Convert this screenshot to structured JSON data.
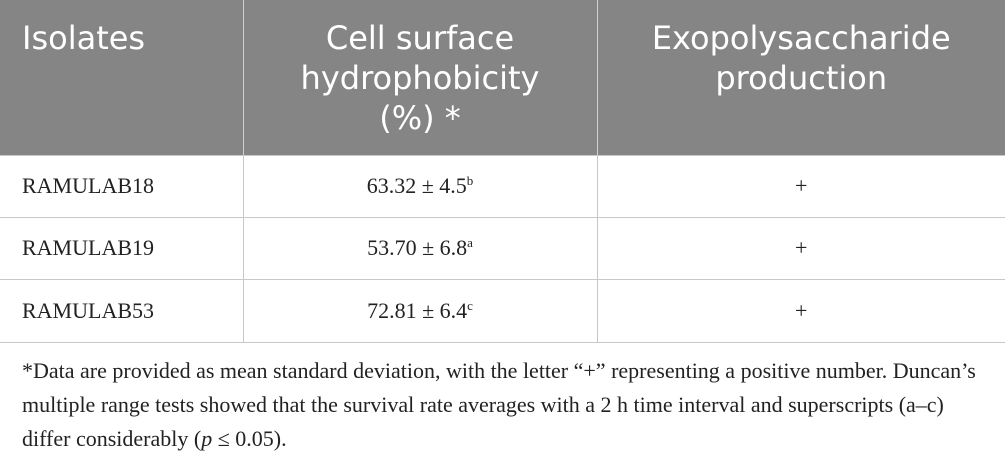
{
  "table": {
    "header": [
      {
        "lines": [
          "Isolates"
        ]
      },
      {
        "lines": [
          "Cell surface",
          "hydrophobicity",
          "(%) *"
        ]
      },
      {
        "lines": [
          "Exopolysaccharide",
          "production"
        ]
      }
    ],
    "rows": [
      [
        {
          "text": "RAMULAB18"
        },
        {
          "text": "63.32 ± 4.5",
          "sup": "b"
        },
        {
          "text": "+"
        }
      ],
      [
        {
          "text": "RAMULAB19"
        },
        {
          "text": "53.70 ± 6.8",
          "sup": "a"
        },
        {
          "text": "+"
        }
      ],
      [
        {
          "text": "RAMULAB53"
        },
        {
          "text": "72.81 ± 6.4",
          "sup": "c"
        },
        {
          "text": "+"
        }
      ]
    ]
  },
  "footnote": {
    "parts": [
      {
        "text": "*Data are provided as mean standard deviation, with the letter “+” representing a positive number. Duncan’s multiple range tests showed that the survival rate averages with a 2 h time interval and superscripts (a–c) differ considerably ("
      },
      {
        "text": "p",
        "italic": true
      },
      {
        "text": " ≤ 0.05)."
      }
    ]
  }
}
